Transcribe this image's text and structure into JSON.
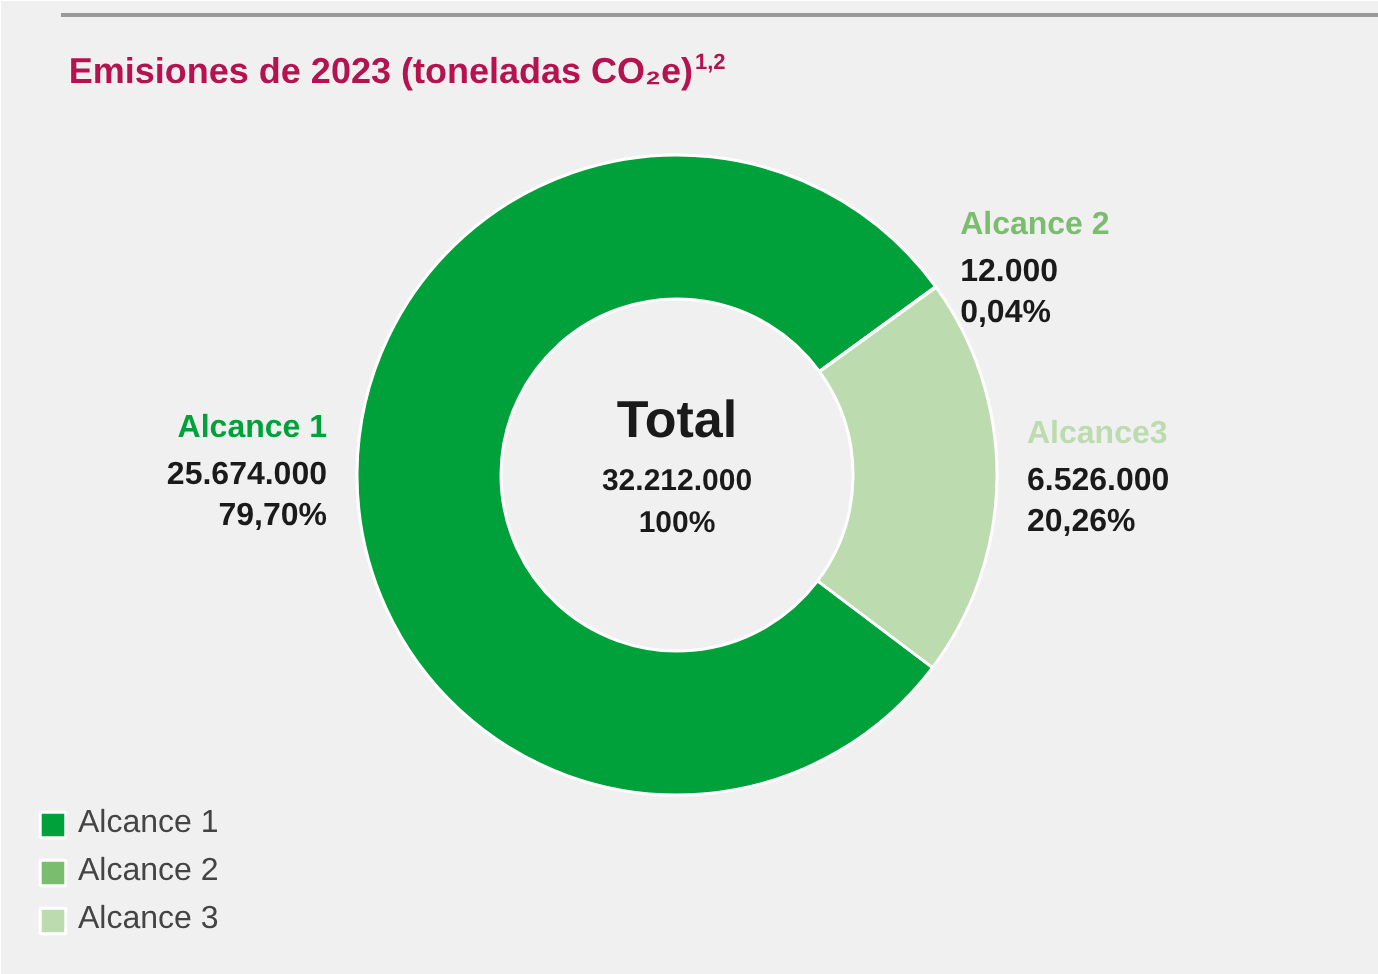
{
  "chart_data": {
    "type": "donut",
    "title": "Emisiones de 2023 (toneladas CO₂e)$^{1,2}$",
    "categories": [
      "Alcance 1",
      "Alcance 2",
      "Alcance 3"
    ],
    "values": [
      25674000,
      12000,
      6526000
    ],
    "colors": [
      "#00a03a",
      "#7bbd6e",
      "#bcdcb0"
    ],
    "value_labels": [
      "Alcance 1\n25.674.000\n79,70%",
      "Alcance 2\n12.000\n0,04%",
      "Alcance3\n6.526.000\n20,26%"
    ],
    "annotations": [
      "Total",
      "32.212.000",
      "100%"
    ],
    "legend": "bottom left"
  }
}
